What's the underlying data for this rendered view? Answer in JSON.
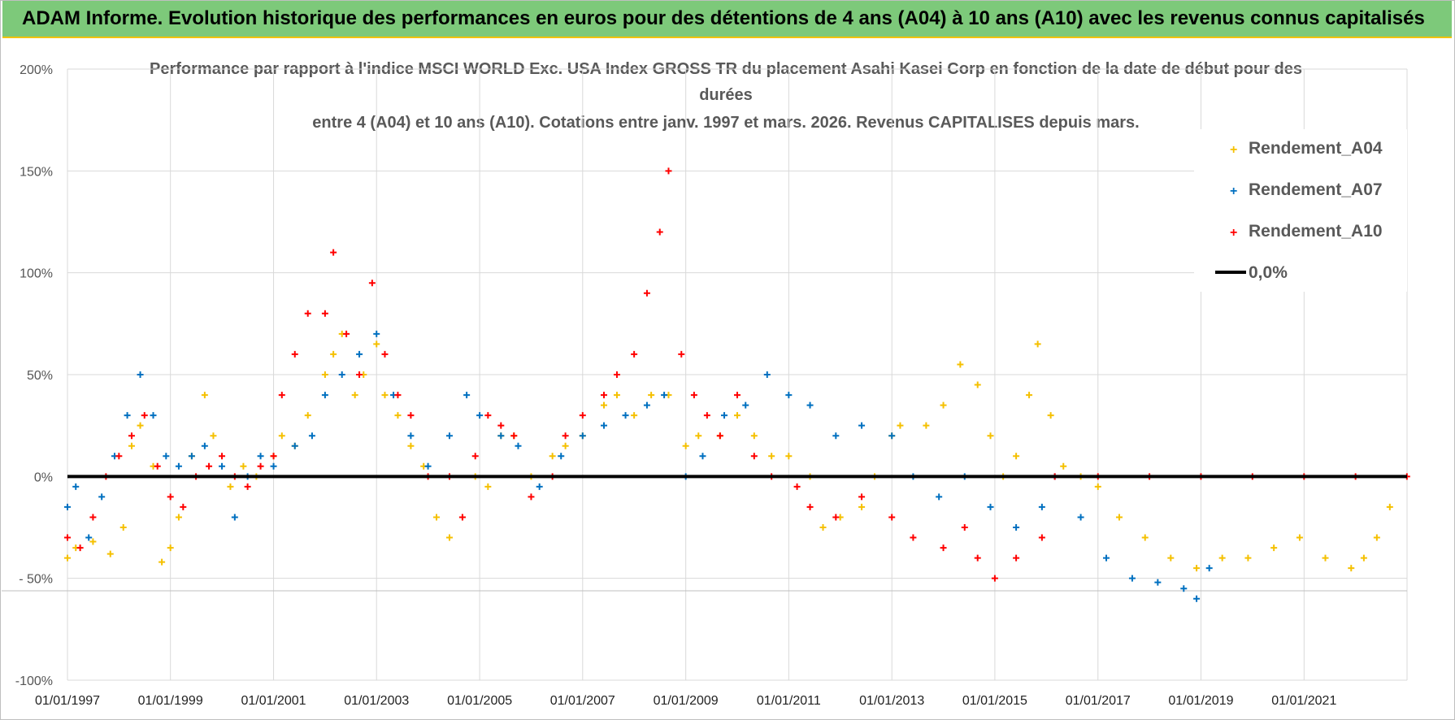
{
  "banner": {
    "text": "ADAM Informe. Evolution historique des performances en euros pour des détentions de 4 ans (A04) à 10 ans (A10) avec les revenus connus capitalisés"
  },
  "colors": {
    "banner_bg": "#7dc97a",
    "A04": "#f5c000",
    "A07": "#0070c0",
    "A10": "#ff0000",
    "zero_line": "#000000"
  },
  "chart_data": {
    "type": "scatter",
    "title_lines": [
      "Performance par rapport à l'indice MSCI WORLD Exc. USA Index GROSS TR  du placement Asahi Kasei Corp en fonction de la date de début pour des",
      "durées",
      "entre 4 (A04) et 10 ans (A10).  Cotations entre janv. 1997 et mars. 2026.  Revenus CAPITALISES  depuis mars."
    ],
    "ylim": [
      -100,
      200
    ],
    "yticks": [
      "200%",
      "150%",
      "100%",
      "50%",
      "0%",
      "- 50%",
      "-100%"
    ],
    "ytick_values": [
      200,
      150,
      100,
      50,
      0,
      -50,
      -100
    ],
    "xlim": [
      "1997-01-01",
      "2023-01-01"
    ],
    "xticks": [
      "01/01/1997",
      "01/01/1999",
      "01/01/2001",
      "01/01/2003",
      "01/01/2005",
      "01/01/2007",
      "01/01/2009",
      "01/01/2011",
      "01/01/2013",
      "01/01/2015",
      "01/01/2017",
      "01/01/2019",
      "01/01/2021"
    ],
    "grid": true,
    "legend_position": "top-right",
    "reference_line": {
      "label": "0,0%",
      "y": 0
    },
    "series": [
      {
        "name": "Rendement_A04",
        "marker": "+",
        "points": [
          [
            "1997-01-01",
            -40
          ],
          [
            "1997-03-01",
            -35
          ],
          [
            "1997-07-01",
            -32
          ],
          [
            "1997-11-01",
            -38
          ],
          [
            "1998-02-01",
            -25
          ],
          [
            "1998-04-01",
            15
          ],
          [
            "1998-06-01",
            25
          ],
          [
            "1998-09-01",
            5
          ],
          [
            "1998-11-01",
            -42
          ],
          [
            "1999-01-01",
            -35
          ],
          [
            "1999-03-01",
            -20
          ],
          [
            "1999-06-01",
            10
          ],
          [
            "1999-09-01",
            40
          ],
          [
            "1999-11-01",
            20
          ],
          [
            "2000-03-01",
            -5
          ],
          [
            "2000-06-01",
            5
          ],
          [
            "2000-09-01",
            0
          ],
          [
            "2001-01-01",
            10
          ],
          [
            "2001-03-01",
            20
          ],
          [
            "2001-06-01",
            15
          ],
          [
            "2001-09-01",
            30
          ],
          [
            "2002-01-01",
            50
          ],
          [
            "2002-03-01",
            60
          ],
          [
            "2002-05-01",
            70
          ],
          [
            "2002-08-01",
            40
          ],
          [
            "2002-10-01",
            50
          ],
          [
            "2003-01-01",
            65
          ],
          [
            "2003-03-01",
            40
          ],
          [
            "2003-06-01",
            30
          ],
          [
            "2003-09-01",
            15
          ],
          [
            "2003-12-01",
            5
          ],
          [
            "2004-03-01",
            -20
          ],
          [
            "2004-06-01",
            -30
          ],
          [
            "2004-09-01",
            -20
          ],
          [
            "2004-12-01",
            0
          ],
          [
            "2005-03-01",
            -5
          ],
          [
            "2005-06-01",
            20
          ],
          [
            "2005-09-01",
            20
          ],
          [
            "2006-01-01",
            0
          ],
          [
            "2006-06-01",
            10
          ],
          [
            "2006-09-01",
            15
          ],
          [
            "2007-01-01",
            20
          ],
          [
            "2007-06-01",
            35
          ],
          [
            "2007-09-01",
            40
          ],
          [
            "2008-01-01",
            30
          ],
          [
            "2008-05-01",
            40
          ],
          [
            "2008-09-01",
            40
          ],
          [
            "2009-01-01",
            15
          ],
          [
            "2009-04-01",
            20
          ],
          [
            "2009-09-01",
            20
          ],
          [
            "2010-01-01",
            30
          ],
          [
            "2010-05-01",
            20
          ],
          [
            "2010-09-01",
            10
          ],
          [
            "2011-01-01",
            10
          ],
          [
            "2011-06-01",
            0
          ],
          [
            "2011-09-01",
            -25
          ],
          [
            "2012-01-01",
            -20
          ],
          [
            "2012-06-01",
            -15
          ],
          [
            "2012-09-01",
            0
          ],
          [
            "2013-01-01",
            20
          ],
          [
            "2013-03-01",
            25
          ],
          [
            "2013-09-01",
            25
          ],
          [
            "2014-01-01",
            35
          ],
          [
            "2014-05-01",
            55
          ],
          [
            "2014-09-01",
            45
          ],
          [
            "2014-12-01",
            20
          ],
          [
            "2015-03-01",
            0
          ],
          [
            "2015-06-01",
            10
          ],
          [
            "2015-09-01",
            40
          ],
          [
            "2015-11-01",
            65
          ],
          [
            "2016-02-01",
            30
          ],
          [
            "2016-05-01",
            5
          ],
          [
            "2016-09-01",
            0
          ],
          [
            "2017-01-01",
            -5
          ],
          [
            "2017-06-01",
            -20
          ],
          [
            "2017-12-01",
            -30
          ],
          [
            "2018-06-01",
            -40
          ],
          [
            "2018-12-01",
            -45
          ],
          [
            "2019-06-01",
            -40
          ],
          [
            "2019-12-01",
            -40
          ],
          [
            "2020-06-01",
            -35
          ],
          [
            "2020-12-01",
            -30
          ],
          [
            "2021-06-01",
            -40
          ],
          [
            "2021-12-01",
            -45
          ],
          [
            "2022-03-01",
            -40
          ],
          [
            "2022-06-01",
            -30
          ],
          [
            "2022-09-01",
            -15
          ]
        ]
      },
      {
        "name": "Rendement_A07",
        "marker": "+",
        "points": [
          [
            "1997-01-01",
            -15
          ],
          [
            "1997-03-01",
            -5
          ],
          [
            "1997-06-01",
            -30
          ],
          [
            "1997-09-01",
            -10
          ],
          [
            "1997-12-01",
            10
          ],
          [
            "1998-03-01",
            30
          ],
          [
            "1998-06-01",
            50
          ],
          [
            "1998-09-01",
            30
          ],
          [
            "1998-12-01",
            10
          ],
          [
            "1999-03-01",
            5
          ],
          [
            "1999-06-01",
            10
          ],
          [
            "1999-09-01",
            15
          ],
          [
            "2000-01-01",
            5
          ],
          [
            "2000-04-01",
            -20
          ],
          [
            "2000-07-01",
            0
          ],
          [
            "2000-10-01",
            10
          ],
          [
            "2001-01-01",
            5
          ],
          [
            "2001-06-01",
            15
          ],
          [
            "2001-10-01",
            20
          ],
          [
            "2002-01-01",
            40
          ],
          [
            "2002-05-01",
            50
          ],
          [
            "2002-09-01",
            60
          ],
          [
            "2003-01-01",
            70
          ],
          [
            "2003-05-01",
            40
          ],
          [
            "2003-09-01",
            20
          ],
          [
            "2004-01-01",
            5
          ],
          [
            "2004-06-01",
            20
          ],
          [
            "2004-10-01",
            40
          ],
          [
            "2005-01-01",
            30
          ],
          [
            "2005-06-01",
            20
          ],
          [
            "2005-10-01",
            15
          ],
          [
            "2006-03-01",
            -5
          ],
          [
            "2006-08-01",
            10
          ],
          [
            "2007-01-01",
            20
          ],
          [
            "2007-06-01",
            25
          ],
          [
            "2007-11-01",
            30
          ],
          [
            "2008-04-01",
            35
          ],
          [
            "2008-08-01",
            40
          ],
          [
            "2009-01-01",
            0
          ],
          [
            "2009-05-01",
            10
          ],
          [
            "2009-10-01",
            30
          ],
          [
            "2010-03-01",
            35
          ],
          [
            "2010-08-01",
            50
          ],
          [
            "2011-01-01",
            40
          ],
          [
            "2011-06-01",
            35
          ],
          [
            "2011-12-01",
            20
          ],
          [
            "2012-06-01",
            25
          ],
          [
            "2013-01-01",
            20
          ],
          [
            "2013-06-01",
            0
          ],
          [
            "2013-12-01",
            -10
          ],
          [
            "2014-06-01",
            0
          ],
          [
            "2014-12-01",
            -15
          ],
          [
            "2015-06-01",
            -25
          ],
          [
            "2015-12-01",
            -15
          ],
          [
            "2016-03-01",
            0
          ],
          [
            "2016-09-01",
            -20
          ],
          [
            "2017-03-01",
            -40
          ],
          [
            "2017-09-01",
            -50
          ],
          [
            "2018-03-01",
            -52
          ],
          [
            "2018-09-01",
            -55
          ],
          [
            "2018-12-01",
            -60
          ],
          [
            "2019-03-01",
            -45
          ]
        ]
      },
      {
        "name": "Rendement_A10",
        "marker": "+",
        "points": [
          [
            "1997-01-01",
            -30
          ],
          [
            "1997-04-01",
            -35
          ],
          [
            "1997-07-01",
            -20
          ],
          [
            "1997-10-01",
            0
          ],
          [
            "1998-01-01",
            10
          ],
          [
            "1998-04-01",
            20
          ],
          [
            "1998-07-01",
            30
          ],
          [
            "1998-10-01",
            5
          ],
          [
            "1999-01-01",
            -10
          ],
          [
            "1999-04-01",
            -15
          ],
          [
            "1999-07-01",
            0
          ],
          [
            "1999-10-01",
            5
          ],
          [
            "2000-01-01",
            10
          ],
          [
            "2000-04-01",
            0
          ],
          [
            "2000-07-01",
            -5
          ],
          [
            "2000-10-01",
            5
          ],
          [
            "2001-01-01",
            10
          ],
          [
            "2001-03-01",
            40
          ],
          [
            "2001-06-01",
            60
          ],
          [
            "2001-09-01",
            80
          ],
          [
            "2002-01-01",
            80
          ],
          [
            "2002-03-01",
            110
          ],
          [
            "2002-06-01",
            70
          ],
          [
            "2002-09-01",
            50
          ],
          [
            "2002-12-01",
            95
          ],
          [
            "2003-03-01",
            60
          ],
          [
            "2003-06-01",
            40
          ],
          [
            "2003-09-01",
            30
          ],
          [
            "2004-01-01",
            0
          ],
          [
            "2004-06-01",
            0
          ],
          [
            "2004-09-01",
            -20
          ],
          [
            "2004-12-01",
            10
          ],
          [
            "2005-03-01",
            30
          ],
          [
            "2005-06-01",
            25
          ],
          [
            "2005-09-01",
            20
          ],
          [
            "2006-01-01",
            -10
          ],
          [
            "2006-06-01",
            0
          ],
          [
            "2006-09-01",
            20
          ],
          [
            "2007-01-01",
            30
          ],
          [
            "2007-06-01",
            40
          ],
          [
            "2007-09-01",
            50
          ],
          [
            "2008-01-01",
            60
          ],
          [
            "2008-04-01",
            90
          ],
          [
            "2008-07-01",
            120
          ],
          [
            "2008-09-01",
            150
          ],
          [
            "2008-12-01",
            60
          ],
          [
            "2009-03-01",
            40
          ],
          [
            "2009-06-01",
            30
          ],
          [
            "2009-09-01",
            20
          ],
          [
            "2010-01-01",
            40
          ],
          [
            "2010-05-01",
            10
          ],
          [
            "2010-09-01",
            0
          ],
          [
            "2011-03-01",
            -5
          ],
          [
            "2011-06-01",
            -15
          ],
          [
            "2011-12-01",
            -20
          ],
          [
            "2012-06-01",
            -10
          ],
          [
            "2013-01-01",
            -20
          ],
          [
            "2013-06-01",
            -30
          ],
          [
            "2014-01-01",
            -35
          ],
          [
            "2014-06-01",
            -25
          ],
          [
            "2014-09-01",
            -40
          ],
          [
            "2015-01-01",
            -50
          ],
          [
            "2015-06-01",
            -40
          ],
          [
            "2015-12-01",
            -30
          ],
          [
            "2016-03-01",
            0
          ],
          [
            "2017-01-01",
            0
          ],
          [
            "2018-01-01",
            0
          ],
          [
            "2019-01-01",
            0
          ],
          [
            "2020-01-01",
            0
          ],
          [
            "2021-01-01",
            0
          ],
          [
            "2022-01-01",
            0
          ],
          [
            "2022-12-31",
            0
          ]
        ]
      }
    ]
  }
}
